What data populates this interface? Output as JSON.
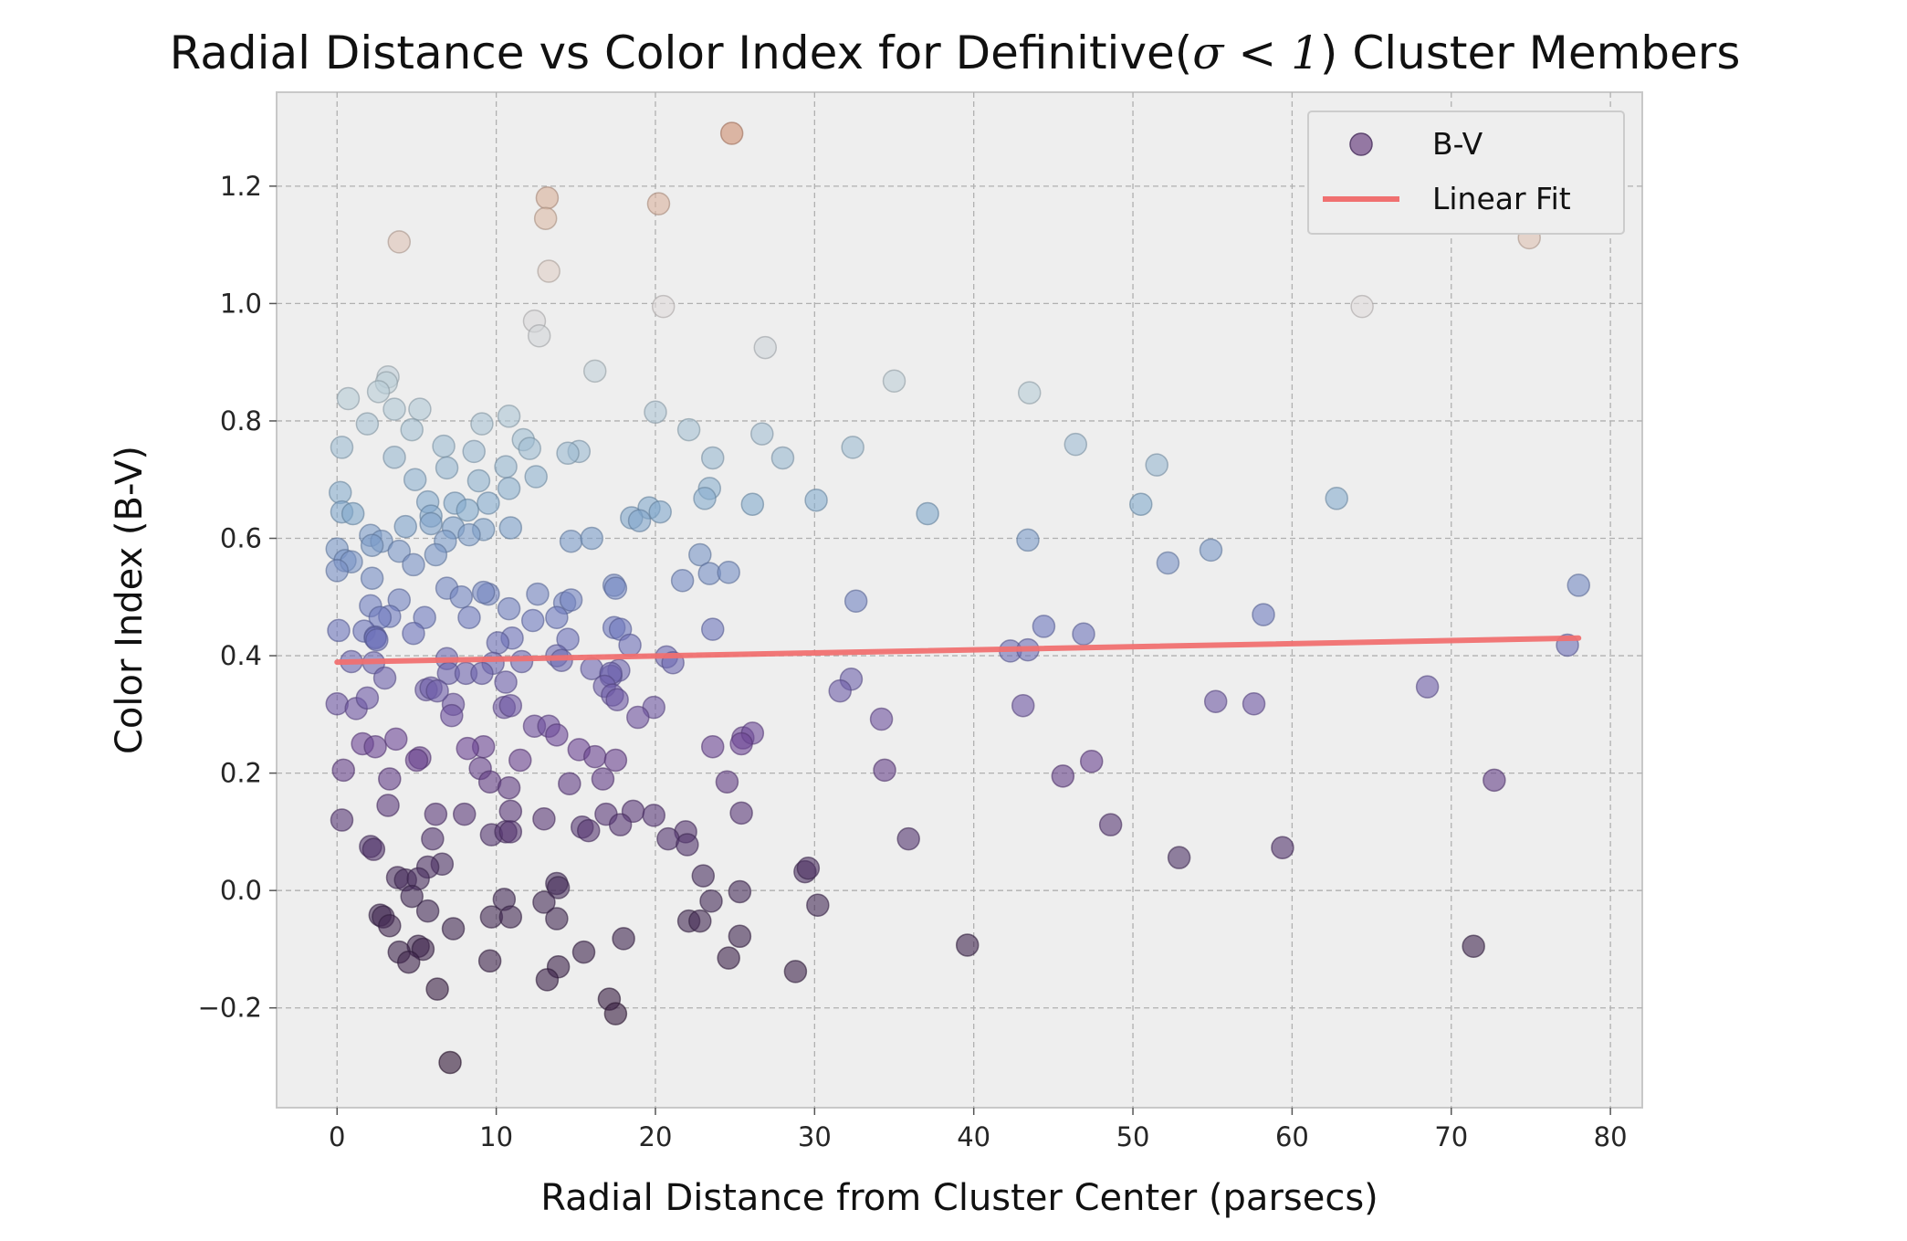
{
  "chart_data": {
    "type": "scatter",
    "title": "Radial Distance vs Color Index for Definitive(σ < 1) Cluster Members",
    "title_prefix": "Radial Distance vs Color Index for Definitive(",
    "title_math": "σ < 1",
    "title_suffix": ") Cluster Members",
    "xlabel": "Radial Distance from Cluster Center (parsecs)",
    "ylabel": "Color Index (B-V)",
    "xlim": [
      -3.8,
      82
    ],
    "ylim": [
      -0.37,
      1.36
    ],
    "xticks": [
      0,
      10,
      20,
      30,
      40,
      50,
      60,
      70,
      80
    ],
    "yticks": [
      -0.2,
      0.0,
      0.2,
      0.4,
      0.6,
      0.8,
      1.0,
      1.2
    ],
    "ytick_labels": [
      "−0.2",
      "0.0",
      "0.2",
      "0.4",
      "0.6",
      "0.8",
      "1.0",
      "1.2"
    ],
    "grid": true,
    "legend_position": "top-right",
    "colormap": "twilight",
    "colors": {
      "background": "#eeeeee",
      "grid": "#b0b0b0",
      "fit_line": "#f07070",
      "legend_marker": "#8a6a9a"
    },
    "series": [
      {
        "name": "B-V",
        "kind": "scatter",
        "points": [
          [
            24.8,
            1.29
          ],
          [
            13.2,
            1.18
          ],
          [
            20.2,
            1.17
          ],
          [
            13.1,
            1.145
          ],
          [
            3.9,
            1.105
          ],
          [
            74.9,
            1.112
          ],
          [
            13.3,
            1.055
          ],
          [
            20.5,
            0.995
          ],
          [
            64.4,
            0.995
          ],
          [
            12.4,
            0.97
          ],
          [
            12.7,
            0.945
          ],
          [
            26.9,
            0.925
          ],
          [
            16.2,
            0.885
          ],
          [
            35.0,
            0.868
          ],
          [
            3.2,
            0.875
          ],
          [
            3.1,
            0.865
          ],
          [
            2.6,
            0.85
          ],
          [
            43.5,
            0.848
          ],
          [
            0.7,
            0.838
          ],
          [
            3.6,
            0.82
          ],
          [
            5.2,
            0.82
          ],
          [
            20.0,
            0.815
          ],
          [
            10.8,
            0.808
          ],
          [
            1.9,
            0.795
          ],
          [
            9.1,
            0.795
          ],
          [
            4.7,
            0.785
          ],
          [
            22.1,
            0.785
          ],
          [
            26.7,
            0.778
          ],
          [
            11.7,
            0.768
          ],
          [
            46.4,
            0.76
          ],
          [
            0.3,
            0.755
          ],
          [
            6.7,
            0.757
          ],
          [
            8.6,
            0.748
          ],
          [
            15.2,
            0.748
          ],
          [
            14.5,
            0.745
          ],
          [
            12.1,
            0.753
          ],
          [
            32.4,
            0.755
          ],
          [
            3.6,
            0.738
          ],
          [
            23.6,
            0.737
          ],
          [
            28.0,
            0.737
          ],
          [
            51.5,
            0.725
          ],
          [
            6.9,
            0.72
          ],
          [
            10.6,
            0.722
          ],
          [
            4.9,
            0.7
          ],
          [
            8.9,
            0.698
          ],
          [
            12.5,
            0.705
          ],
          [
            0.2,
            0.678
          ],
          [
            10.8,
            0.685
          ],
          [
            23.4,
            0.685
          ],
          [
            7.4,
            0.66
          ],
          [
            9.5,
            0.66
          ],
          [
            5.7,
            0.662
          ],
          [
            30.1,
            0.665
          ],
          [
            23.1,
            0.668
          ],
          [
            62.8,
            0.668
          ],
          [
            50.5,
            0.658
          ],
          [
            26.1,
            0.658
          ],
          [
            19.6,
            0.652
          ],
          [
            8.2,
            0.648
          ],
          [
            0.3,
            0.645
          ],
          [
            1.0,
            0.642
          ],
          [
            5.9,
            0.638
          ],
          [
            20.3,
            0.645
          ],
          [
            18.5,
            0.635
          ],
          [
            19.0,
            0.63
          ],
          [
            37.1,
            0.642
          ],
          [
            5.9,
            0.625
          ],
          [
            4.3,
            0.62
          ],
          [
            7.3,
            0.618
          ],
          [
            9.2,
            0.615
          ],
          [
            10.9,
            0.618
          ],
          [
            2.1,
            0.605
          ],
          [
            8.3,
            0.606
          ],
          [
            6.8,
            0.595
          ],
          [
            14.7,
            0.595
          ],
          [
            16.0,
            0.6
          ],
          [
            43.4,
            0.597
          ],
          [
            2.8,
            0.595
          ],
          [
            0.0,
            0.582
          ],
          [
            2.2,
            0.588
          ],
          [
            3.9,
            0.578
          ],
          [
            54.9,
            0.58
          ],
          [
            22.8,
            0.572
          ],
          [
            6.2,
            0.572
          ],
          [
            0.5,
            0.562
          ],
          [
            0.9,
            0.56
          ],
          [
            52.2,
            0.558
          ],
          [
            0.0,
            0.545
          ],
          [
            4.8,
            0.555
          ],
          [
            23.4,
            0.54
          ],
          [
            24.6,
            0.542
          ],
          [
            2.2,
            0.532
          ],
          [
            21.7,
            0.528
          ],
          [
            17.4,
            0.52
          ],
          [
            17.5,
            0.515
          ],
          [
            78.0,
            0.52
          ],
          [
            6.9,
            0.515
          ],
          [
            7.8,
            0.5
          ],
          [
            9.5,
            0.505
          ],
          [
            9.2,
            0.508
          ],
          [
            12.6,
            0.505
          ],
          [
            14.3,
            0.49
          ],
          [
            14.7,
            0.495
          ],
          [
            32.6,
            0.493
          ],
          [
            3.9,
            0.495
          ],
          [
            2.1,
            0.485
          ],
          [
            10.8,
            0.48
          ],
          [
            58.2,
            0.47
          ],
          [
            3.3,
            0.467
          ],
          [
            2.7,
            0.465
          ],
          [
            5.5,
            0.465
          ],
          [
            8.3,
            0.465
          ],
          [
            13.8,
            0.465
          ],
          [
            12.3,
            0.46
          ],
          [
            44.4,
            0.45
          ],
          [
            17.4,
            0.448
          ],
          [
            17.8,
            0.445
          ],
          [
            1.7,
            0.442
          ],
          [
            0.1,
            0.443
          ],
          [
            2.4,
            0.432
          ],
          [
            2.4,
            0.43
          ],
          [
            23.6,
            0.445
          ],
          [
            46.9,
            0.437
          ],
          [
            4.8,
            0.438
          ],
          [
            11.0,
            0.43
          ],
          [
            10.1,
            0.422
          ],
          [
            14.5,
            0.428
          ],
          [
            2.5,
            0.427
          ],
          [
            18.4,
            0.418
          ],
          [
            77.3,
            0.418
          ],
          [
            0.9,
            0.39
          ],
          [
            2.3,
            0.388
          ],
          [
            11.6,
            0.39
          ],
          [
            13.8,
            0.4
          ],
          [
            14.1,
            0.392
          ],
          [
            42.3,
            0.408
          ],
          [
            43.4,
            0.41
          ],
          [
            20.7,
            0.398
          ],
          [
            21.1,
            0.388
          ],
          [
            6.9,
            0.395
          ],
          [
            9.8,
            0.387
          ],
          [
            7.0,
            0.37
          ],
          [
            8.1,
            0.37
          ],
          [
            9.1,
            0.37
          ],
          [
            3.0,
            0.362
          ],
          [
            16.0,
            0.378
          ],
          [
            17.7,
            0.375
          ],
          [
            17.2,
            0.365
          ],
          [
            10.6,
            0.355
          ],
          [
            17.2,
            0.37
          ],
          [
            5.6,
            0.342
          ],
          [
            5.9,
            0.345
          ],
          [
            32.3,
            0.36
          ],
          [
            16.8,
            0.348
          ],
          [
            17.3,
            0.333
          ],
          [
            31.6,
            0.34
          ],
          [
            17.6,
            0.325
          ],
          [
            0.0,
            0.318
          ],
          [
            1.2,
            0.31
          ],
          [
            7.3,
            0.317
          ],
          [
            10.5,
            0.312
          ],
          [
            10.9,
            0.315
          ],
          [
            1.9,
            0.328
          ],
          [
            6.3,
            0.34
          ],
          [
            55.2,
            0.322
          ],
          [
            43.1,
            0.315
          ],
          [
            57.6,
            0.318
          ],
          [
            68.5,
            0.347
          ],
          [
            19.9,
            0.312
          ],
          [
            7.2,
            0.298
          ],
          [
            18.9,
            0.295
          ],
          [
            34.2,
            0.292
          ],
          [
            12.4,
            0.28
          ],
          [
            13.3,
            0.28
          ],
          [
            13.8,
            0.265
          ],
          [
            25.5,
            0.26
          ],
          [
            26.1,
            0.268
          ],
          [
            25.4,
            0.25
          ],
          [
            3.7,
            0.258
          ],
          [
            1.6,
            0.25
          ],
          [
            2.4,
            0.245
          ],
          [
            9.2,
            0.245
          ],
          [
            8.2,
            0.242
          ],
          [
            23.6,
            0.245
          ],
          [
            15.2,
            0.24
          ],
          [
            16.2,
            0.228
          ],
          [
            5.2,
            0.226
          ],
          [
            5.0,
            0.222
          ],
          [
            11.5,
            0.222
          ],
          [
            17.5,
            0.222
          ],
          [
            47.4,
            0.22
          ],
          [
            0.4,
            0.205
          ],
          [
            9.0,
            0.208
          ],
          [
            34.4,
            0.205
          ],
          [
            45.6,
            0.195
          ],
          [
            72.7,
            0.188
          ],
          [
            3.3,
            0.19
          ],
          [
            9.6,
            0.185
          ],
          [
            14.6,
            0.182
          ],
          [
            24.5,
            0.185
          ],
          [
            10.8,
            0.175
          ],
          [
            16.7,
            0.19
          ],
          [
            3.2,
            0.145
          ],
          [
            6.2,
            0.13
          ],
          [
            8.0,
            0.13
          ],
          [
            10.9,
            0.135
          ],
          [
            13.0,
            0.122
          ],
          [
            16.9,
            0.13
          ],
          [
            18.6,
            0.135
          ],
          [
            19.9,
            0.128
          ],
          [
            25.4,
            0.132
          ],
          [
            0.3,
            0.12
          ],
          [
            15.4,
            0.108
          ],
          [
            15.8,
            0.102
          ],
          [
            17.8,
            0.112
          ],
          [
            21.9,
            0.1
          ],
          [
            48.6,
            0.112
          ],
          [
            9.7,
            0.095
          ],
          [
            10.6,
            0.1
          ],
          [
            10.9,
            0.1
          ],
          [
            20.8,
            0.088
          ],
          [
            22.0,
            0.078
          ],
          [
            35.9,
            0.088
          ],
          [
            6.0,
            0.088
          ],
          [
            2.1,
            0.075
          ],
          [
            2.3,
            0.07
          ],
          [
            59.4,
            0.073
          ],
          [
            52.9,
            0.056
          ],
          [
            6.6,
            0.045
          ],
          [
            29.4,
            0.032
          ],
          [
            29.6,
            0.038
          ],
          [
            5.7,
            0.04
          ],
          [
            3.8,
            0.022
          ],
          [
            23.0,
            0.025
          ],
          [
            4.3,
            0.018
          ],
          [
            5.1,
            0.02
          ],
          [
            13.8,
            0.012
          ],
          [
            13.9,
            0.005
          ],
          [
            10.5,
            -0.015
          ],
          [
            25.3,
            -0.002
          ],
          [
            13.0,
            -0.02
          ],
          [
            4.7,
            -0.01
          ],
          [
            23.5,
            -0.018
          ],
          [
            30.2,
            -0.025
          ],
          [
            5.7,
            -0.035
          ],
          [
            2.7,
            -0.042
          ],
          [
            2.9,
            -0.045
          ],
          [
            9.7,
            -0.045
          ],
          [
            10.9,
            -0.045
          ],
          [
            13.8,
            -0.048
          ],
          [
            3.3,
            -0.06
          ],
          [
            7.3,
            -0.065
          ],
          [
            22.1,
            -0.052
          ],
          [
            22.8,
            -0.052
          ],
          [
            25.3,
            -0.078
          ],
          [
            18.0,
            -0.082
          ],
          [
            5.1,
            -0.095
          ],
          [
            5.4,
            -0.1
          ],
          [
            3.9,
            -0.105
          ],
          [
            4.5,
            -0.122
          ],
          [
            15.5,
            -0.105
          ],
          [
            9.6,
            -0.12
          ],
          [
            13.9,
            -0.13
          ],
          [
            24.6,
            -0.115
          ],
          [
            39.6,
            -0.093
          ],
          [
            71.4,
            -0.095
          ],
          [
            13.2,
            -0.152
          ],
          [
            28.8,
            -0.138
          ],
          [
            6.3,
            -0.168
          ],
          [
            17.1,
            -0.185
          ],
          [
            17.5,
            -0.21
          ],
          [
            7.1,
            -0.293
          ]
        ]
      },
      {
        "name": "Linear Fit",
        "kind": "line",
        "x": [
          0,
          78
        ],
        "y": [
          0.389,
          0.43
        ]
      }
    ]
  }
}
